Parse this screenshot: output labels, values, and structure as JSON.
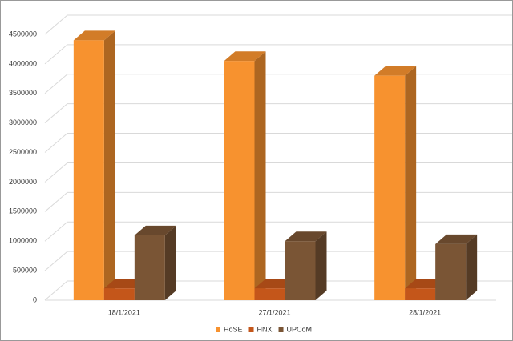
{
  "chart_data": {
    "type": "bar3d",
    "categories": [
      "18/1/2021",
      "27/1/2021",
      "28/1/2021"
    ],
    "series": [
      {
        "name": "HoSE",
        "color": "#f7922f",
        "values": [
          4400000,
          4050000,
          3800000
        ]
      },
      {
        "name": "HNX",
        "color": "#c4561a",
        "values": [
          200000,
          200000,
          200000
        ]
      },
      {
        "name": "UPCoM",
        "color": "#7a5535",
        "values": [
          1100000,
          1000000,
          950000
        ]
      }
    ],
    "ylim": [
      0,
      4500000
    ],
    "yticks": [
      0,
      500000,
      1000000,
      1500000,
      2000000,
      2500000,
      3000000,
      3500000,
      4000000,
      4500000
    ],
    "grid": true,
    "legend": "bottom"
  }
}
